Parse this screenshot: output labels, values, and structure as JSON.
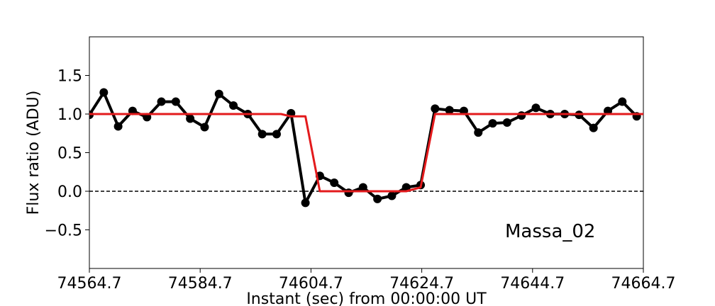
{
  "chart_data": {
    "type": "line",
    "xlabel": "Instant (sec) from 00:00:00 UT",
    "ylabel": "Flux ratio (ADU)",
    "annotation": "Massa_02",
    "annotation_position": "bottom-right",
    "xlim": [
      74564.7,
      74664.7
    ],
    "ylim": [
      -1.0,
      2.0
    ],
    "xticks": [
      74564.7,
      74584.7,
      74604.7,
      74624.7,
      74644.7,
      74664.7
    ],
    "xtick_labels": [
      "74564.7",
      "74584.7",
      "74604.7",
      "74624.7",
      "74644.7",
      "74664.7"
    ],
    "yticks": [
      -0.5,
      0.0,
      0.5,
      1.0,
      1.5
    ],
    "ytick_labels": [
      "−0.5",
      "0.0",
      "0.5",
      "1.0",
      "1.5"
    ],
    "grid": false,
    "reference_line": {
      "y": 0.0,
      "style": "dashed",
      "color": "#000000"
    },
    "series": [
      {
        "kind": "observed",
        "color": "#000000",
        "marker": "circle",
        "x": [
          74564.7,
          74567.3,
          74569.9,
          74572.5,
          74575.1,
          74577.7,
          74580.3,
          74582.9,
          74585.5,
          74588.1,
          74590.7,
          74593.3,
          74595.9,
          74598.5,
          74601.1,
          74603.7,
          74606.3,
          74608.9,
          74611.5,
          74614.1,
          74616.7,
          74619.3,
          74621.9,
          74624.5,
          74627.1,
          74629.7,
          74632.3,
          74634.9,
          74637.5,
          74640.1,
          74642.7,
          74645.3,
          74647.9,
          74650.5,
          74653.1,
          74655.7,
          74658.3,
          74660.9,
          74663.5
        ],
        "y": [
          0.99,
          1.28,
          0.84,
          1.04,
          0.96,
          1.16,
          1.16,
          0.94,
          0.83,
          1.26,
          1.11,
          1.0,
          0.74,
          0.74,
          1.01,
          -0.15,
          0.2,
          0.11,
          -0.02,
          0.05,
          -0.1,
          -0.06,
          0.05,
          0.08,
          1.07,
          1.05,
          1.04,
          0.76,
          0.88,
          0.89,
          0.98,
          1.08,
          1.0,
          1.0,
          0.99,
          0.82,
          1.04,
          1.16,
          0.97
        ]
      },
      {
        "kind": "model",
        "color": "#e31a1c",
        "x": [
          74564.7,
          74599.3,
          74601.1,
          74603.7,
          74606.3,
          74621.9,
          74624.5,
          74627.1,
          74664.7
        ],
        "y": [
          1.0,
          1.0,
          0.97,
          0.97,
          0.0,
          0.0,
          0.05,
          1.0,
          1.0
        ]
      }
    ]
  }
}
